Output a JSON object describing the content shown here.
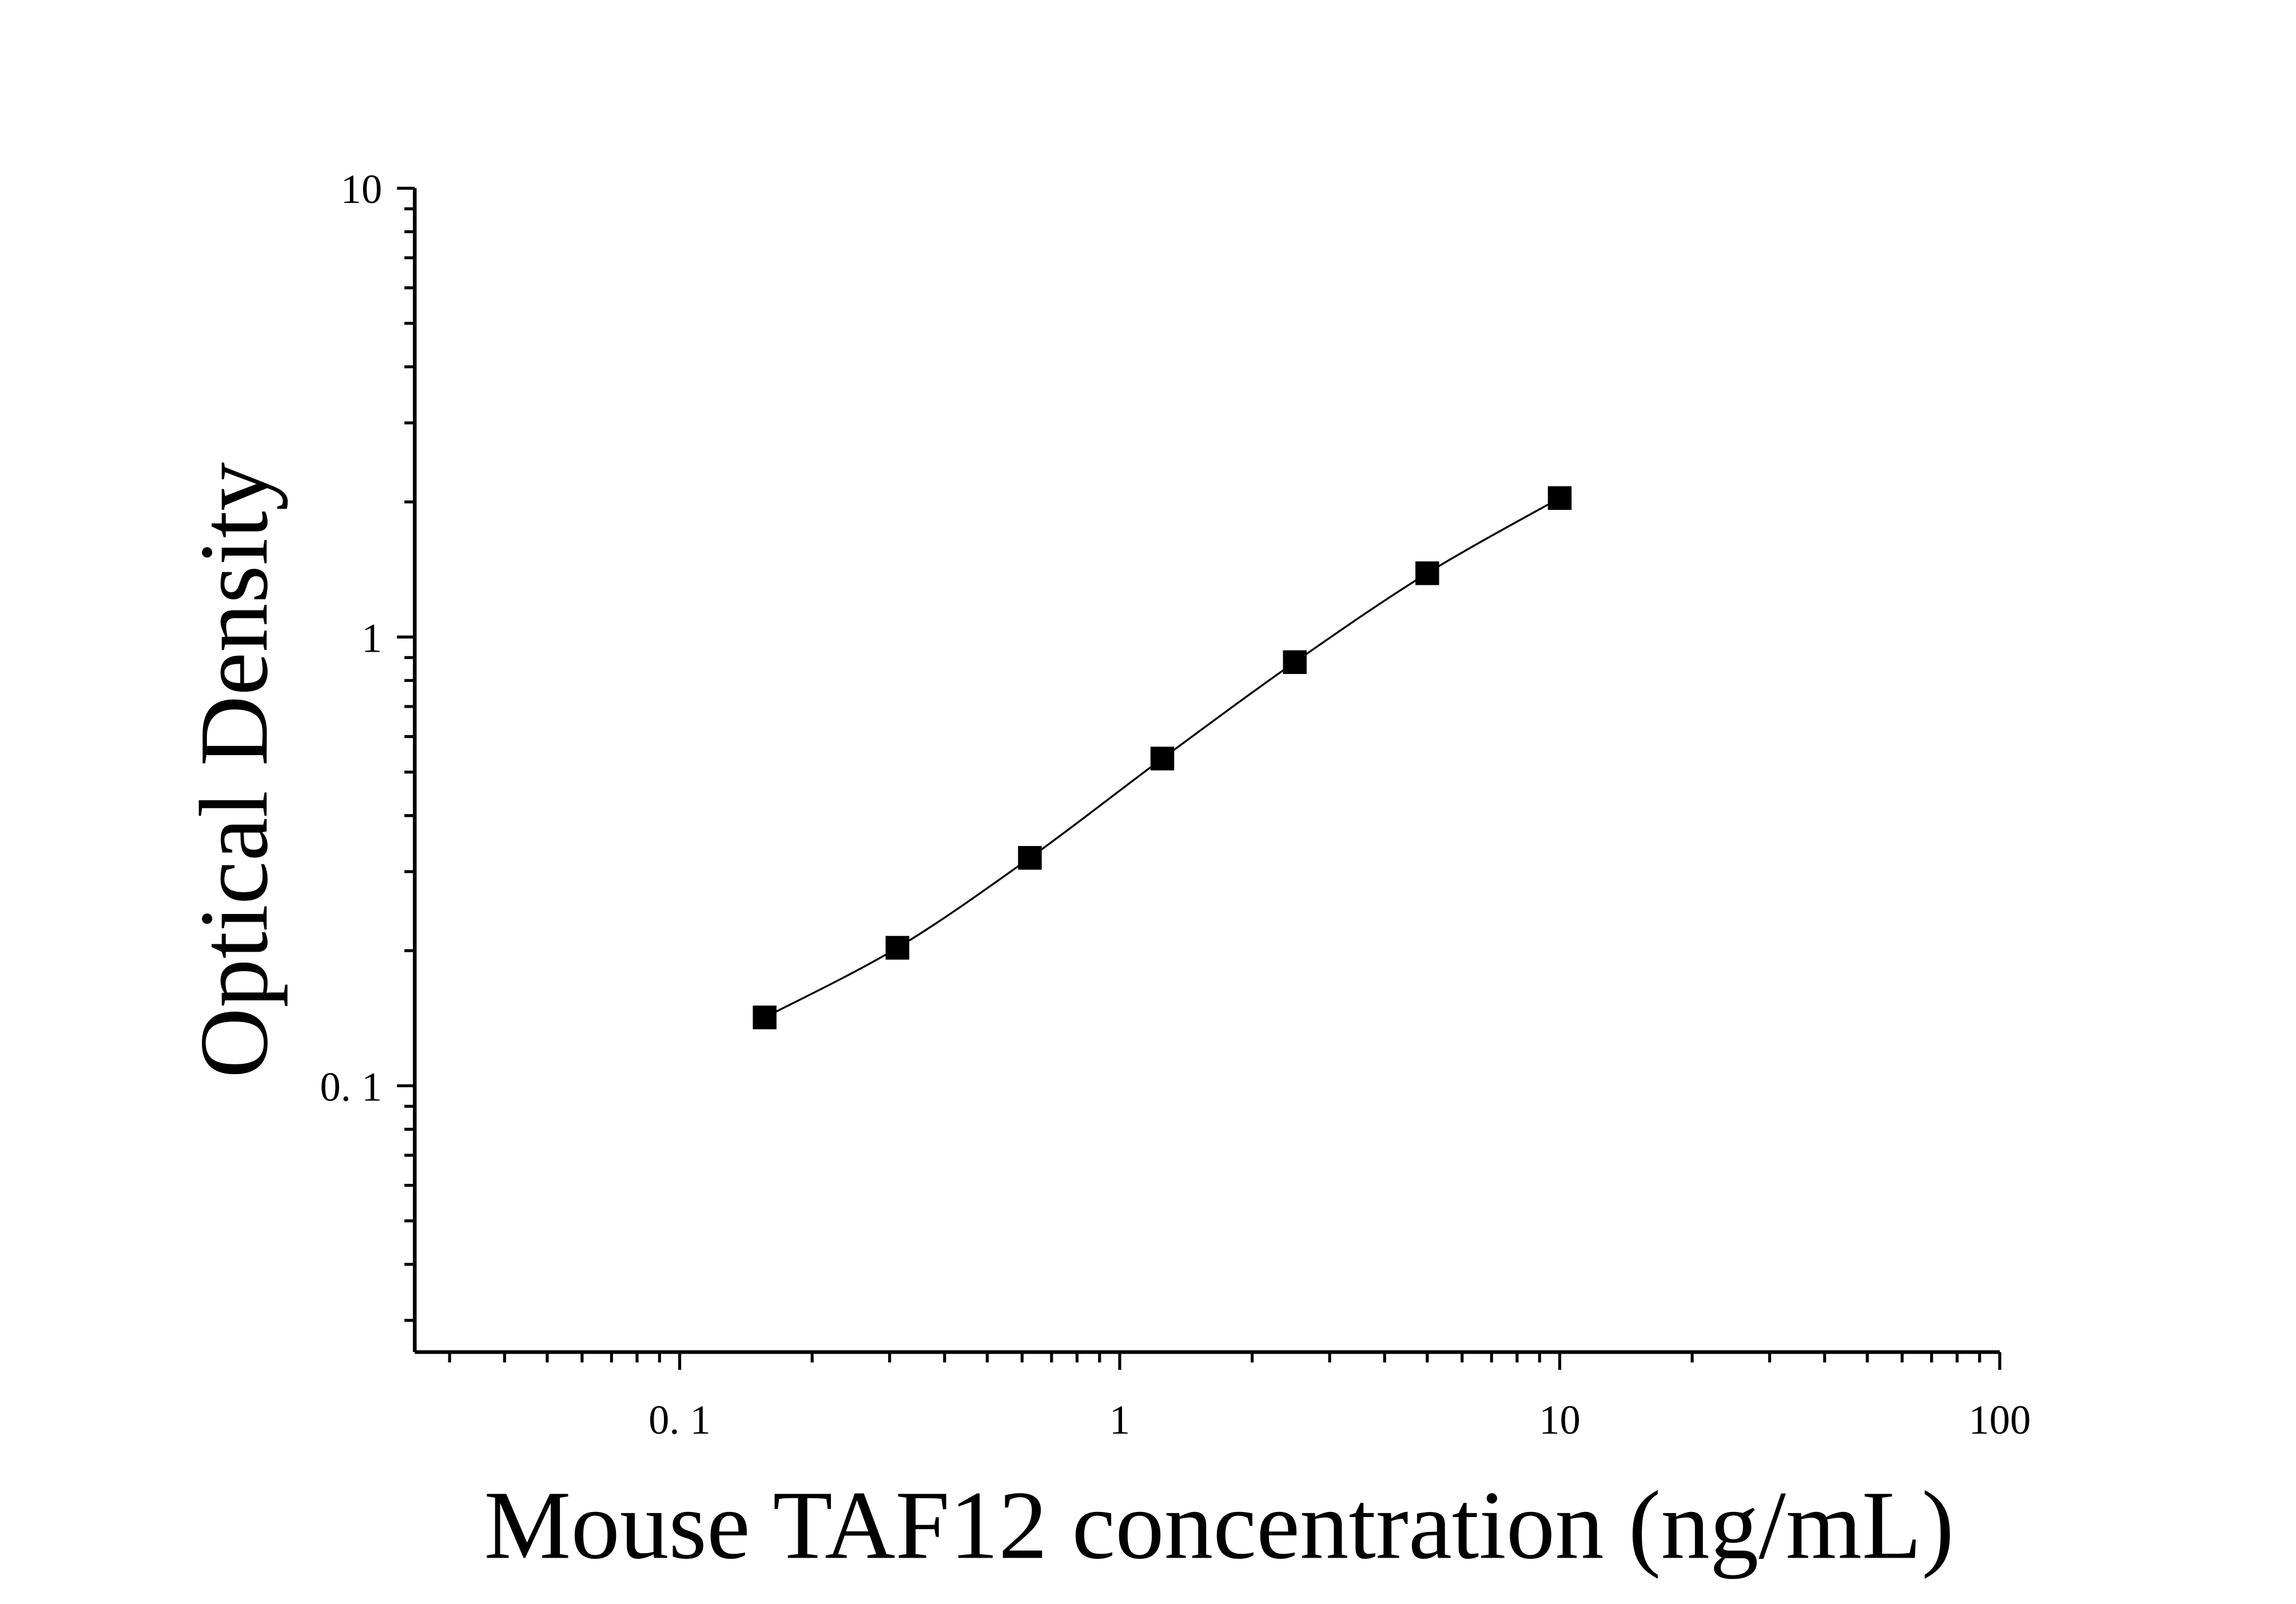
{
  "chart_data": {
    "type": "scatter",
    "xlabel": "Mouse TAF12 concentration (ng/mL)",
    "ylabel": "Optical Density",
    "xscale": "log",
    "yscale": "log",
    "xlim": [
      0.025,
      100
    ],
    "ylim": [
      0.0255,
      10
    ],
    "x_ticks": [
      {
        "value": 0.1,
        "label": "0. 1"
      },
      {
        "value": 1,
        "label": "1"
      },
      {
        "value": 10,
        "label": "10"
      },
      {
        "value": 100,
        "label": "100"
      }
    ],
    "y_ticks": [
      {
        "value": 0.1,
        "label": "0. 1"
      },
      {
        "value": 1,
        "label": "1"
      },
      {
        "value": 10,
        "label": "10"
      }
    ],
    "grid": false,
    "marker": "square",
    "marker_color": "#000000",
    "fit_line": true,
    "series": [
      {
        "x": [
          0.156,
          0.3125,
          0.625,
          1.25,
          2.5,
          5,
          10
        ],
        "y": [
          0.142,
          0.203,
          0.322,
          0.536,
          0.879,
          1.387,
          2.04
        ]
      }
    ]
  }
}
